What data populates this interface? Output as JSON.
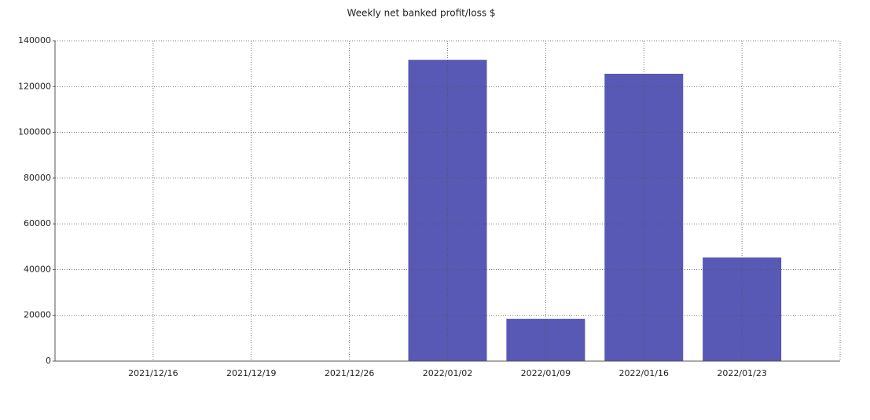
{
  "chart_data": {
    "type": "bar",
    "title": "Weekly net banked profit/loss $",
    "categories": [
      "2021/12/16",
      "2021/12/19",
      "2021/12/26",
      "2022/01/02",
      "2022/01/09",
      "2022/01/16",
      "2022/01/23"
    ],
    "values": [
      0,
      0,
      0,
      131700,
      18500,
      125600,
      45300
    ],
    "color": "#5858b5",
    "ylim": [
      0,
      140000
    ],
    "yticks": [
      0,
      20000,
      40000,
      60000,
      80000,
      100000,
      120000,
      140000
    ],
    "grid": true
  }
}
